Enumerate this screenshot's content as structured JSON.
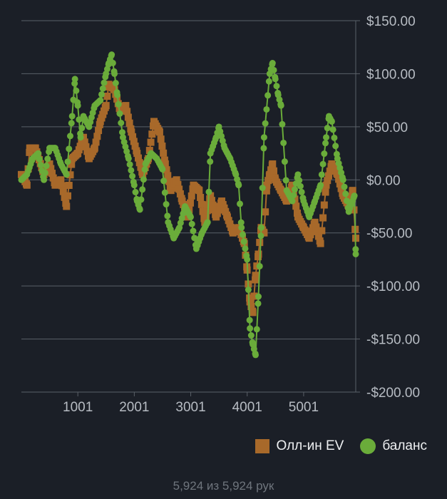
{
  "chart_data": {
    "type": "line",
    "title": "",
    "xlabel": "",
    "ylabel": "",
    "xlim": [
      1,
      5924
    ],
    "ylim": [
      -200,
      150
    ],
    "x_ticks": [
      1001,
      2001,
      3001,
      4001,
      5001
    ],
    "y_ticks": [
      150,
      100,
      50,
      0,
      -50,
      -100,
      -150,
      -200
    ],
    "y_tick_labels": [
      "$150.00",
      "$100.00",
      "$50.00",
      "$0.00",
      "-$50.00",
      "-$100.00",
      "-$150.00",
      "-$200.00"
    ],
    "grid": "horizontal",
    "legend_position": "bottom-right",
    "series": [
      {
        "name": "Олл-ин EV",
        "color": "#a8692a",
        "marker": "square",
        "x": [
          1,
          100,
          150,
          250,
          400,
          500,
          600,
          700,
          800,
          900,
          1000,
          1100,
          1200,
          1300,
          1400,
          1500,
          1550,
          1650,
          1750,
          1850,
          1950,
          2050,
          2150,
          2250,
          2350,
          2450,
          2550,
          2650,
          2750,
          2850,
          2950,
          3050,
          3150,
          3250,
          3350,
          3450,
          3550,
          3650,
          3750,
          3850,
          3950,
          4000,
          4050,
          4100,
          4150,
          4200,
          4250,
          4300,
          4350,
          4400,
          4450,
          4500,
          4600,
          4700,
          4800,
          4900,
          5000,
          5100,
          5200,
          5300,
          5400,
          5500,
          5600,
          5700,
          5800,
          5870,
          5924
        ],
        "y": [
          5,
          -5,
          30,
          30,
          5,
          15,
          -5,
          0,
          -25,
          20,
          25,
          40,
          20,
          30,
          55,
          70,
          90,
          85,
          65,
          70,
          45,
          25,
          5,
          20,
          55,
          45,
          15,
          -10,
          0,
          -20,
          -35,
          -5,
          -10,
          -40,
          -15,
          -35,
          -20,
          -35,
          -50,
          -45,
          -60,
          -85,
          -115,
          -125,
          -90,
          -70,
          -45,
          -50,
          -5,
          5,
          15,
          0,
          -10,
          -20,
          -5,
          -35,
          -45,
          -55,
          -40,
          -60,
          -5,
          15,
          5,
          -15,
          -25,
          -10,
          -55
        ]
      },
      {
        "name": "баланс",
        "color": "#6aac3a",
        "marker": "circle",
        "x": [
          1,
          100,
          200,
          300,
          400,
          500,
          600,
          700,
          800,
          900,
          950,
          1000,
          1050,
          1100,
          1200,
          1300,
          1400,
          1500,
          1550,
          1600,
          1650,
          1700,
          1800,
          1900,
          2000,
          2050,
          2100,
          2200,
          2300,
          2400,
          2500,
          2600,
          2700,
          2800,
          2900,
          3000,
          3100,
          3200,
          3300,
          3350,
          3450,
          3500,
          3600,
          3700,
          3800,
          3850,
          3900,
          4000,
          4050,
          4100,
          4150,
          4200,
          4250,
          4300,
          4400,
          4450,
          4500,
          4550,
          4600,
          4700,
          4800,
          4900,
          5000,
          5100,
          5200,
          5300,
          5400,
          5450,
          5500,
          5600,
          5700,
          5800,
          5900,
          5924
        ],
        "y": [
          0,
          5,
          20,
          25,
          0,
          30,
          30,
          15,
          5,
          60,
          95,
          70,
          40,
          60,
          50,
          70,
          75,
          100,
          110,
          118,
          100,
          80,
          40,
          20,
          -5,
          -20,
          -28,
          15,
          25,
          20,
          10,
          -40,
          -55,
          -45,
          -25,
          -35,
          -65,
          -50,
          -40,
          25,
          40,
          50,
          30,
          20,
          5,
          -5,
          -45,
          -75,
          -140,
          -155,
          -165,
          -110,
          -45,
          40,
          100,
          110,
          95,
          80,
          70,
          -10,
          -20,
          5,
          -20,
          -35,
          -20,
          -5,
          40,
          60,
          55,
          20,
          0,
          -30,
          -15,
          -70
        ]
      }
    ]
  },
  "footer": {
    "text": "5,924 из 5,924 рук"
  }
}
